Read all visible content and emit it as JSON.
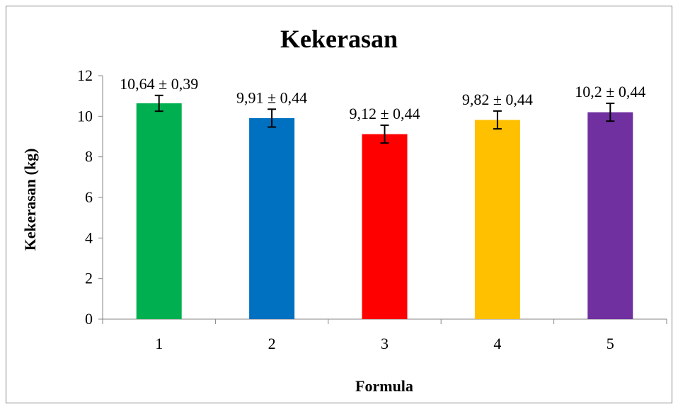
{
  "chart_data": {
    "type": "bar",
    "title": "Kekerasan",
    "xlabel": "Formula",
    "ylabel": "Kekerasan (kg)",
    "categories": [
      "1",
      "2",
      "3",
      "4",
      "5"
    ],
    "values": [
      10.64,
      9.91,
      9.12,
      9.82,
      10.2
    ],
    "errors": [
      0.39,
      0.44,
      0.44,
      0.44,
      0.44
    ],
    "data_labels": [
      "10,64 ± 0,39",
      "9,91 ± 0,44",
      "9,12 ± 0,44",
      "9,82 ± 0,44",
      "10,2 ± 0,44"
    ],
    "colors": [
      "#00B050",
      "#0070C0",
      "#FF0000",
      "#FFC000",
      "#7030A0"
    ],
    "ylim": [
      0,
      12
    ],
    "yticks": [
      "0",
      "2",
      "4",
      "6",
      "8",
      "10",
      "12"
    ],
    "grid": false,
    "legend": "none"
  }
}
